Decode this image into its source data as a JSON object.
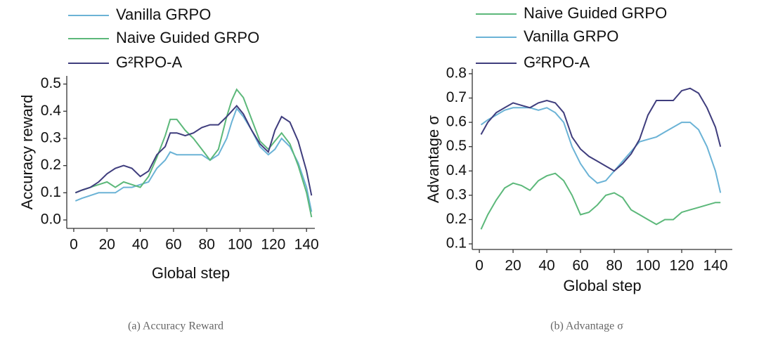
{
  "chart_data": [
    {
      "type": "line",
      "caption": "(a) Accuracy Reward",
      "xlabel": "Global step",
      "ylabel": "Accuracy reward",
      "x": [
        1,
        5,
        10,
        15,
        20,
        25,
        30,
        35,
        40,
        45,
        50,
        55,
        58,
        62,
        67,
        72,
        77,
        82,
        87,
        92,
        95,
        98,
        102,
        107,
        112,
        117,
        121,
        125,
        130,
        135,
        140,
        143
      ],
      "series": [
        {
          "name": "Vanilla GRPO",
          "color": "#6bb3d6",
          "values": [
            0.07,
            0.08,
            0.09,
            0.1,
            0.1,
            0.1,
            0.12,
            0.12,
            0.13,
            0.14,
            0.19,
            0.22,
            0.25,
            0.24,
            0.24,
            0.24,
            0.24,
            0.22,
            0.24,
            0.3,
            0.36,
            0.41,
            0.38,
            0.33,
            0.27,
            0.24,
            0.26,
            0.3,
            0.27,
            0.21,
            0.12,
            0.03
          ]
        },
        {
          "name": "Naive Guided GRPO",
          "color": "#5cb87a",
          "values": [
            0.1,
            0.11,
            0.12,
            0.13,
            0.14,
            0.12,
            0.14,
            0.13,
            0.12,
            0.16,
            0.23,
            0.31,
            0.37,
            0.37,
            0.33,
            0.3,
            0.26,
            0.22,
            0.26,
            0.38,
            0.44,
            0.48,
            0.45,
            0.37,
            0.29,
            0.26,
            0.29,
            0.32,
            0.28,
            0.2,
            0.1,
            0.01
          ]
        },
        {
          "name": "G²RPO-A",
          "color": "#3f3d7d",
          "values": [
            0.1,
            0.11,
            0.12,
            0.14,
            0.17,
            0.19,
            0.2,
            0.19,
            0.16,
            0.18,
            0.24,
            0.27,
            0.32,
            0.32,
            0.31,
            0.32,
            0.34,
            0.35,
            0.35,
            0.38,
            0.4,
            0.42,
            0.39,
            0.33,
            0.28,
            0.25,
            0.33,
            0.38,
            0.36,
            0.29,
            0.18,
            0.09
          ]
        }
      ],
      "xlim": [
        -4.2,
        145
      ],
      "xticks": [
        0,
        20,
        40,
        60,
        80,
        100,
        120,
        140
      ],
      "ylim": [
        -0.031,
        0.53
      ],
      "yticks": [
        {
          "value": 0,
          "label": "0.0"
        },
        0.1,
        0.2,
        0.3,
        0.4,
        0.5
      ]
    },
    {
      "type": "line",
      "caption": "(b) Advantage σ",
      "xlabel": "Global step",
      "ylabel": "Advantage σ",
      "x": [
        1,
        5,
        10,
        15,
        20,
        25,
        30,
        35,
        40,
        45,
        50,
        55,
        60,
        65,
        70,
        75,
        80,
        85,
        90,
        95,
        100,
        105,
        110,
        115,
        120,
        125,
        130,
        135,
        140,
        143
      ],
      "series": [
        {
          "name": "Naive Guided GRPO",
          "color": "#5cb87a",
          "values": [
            0.16,
            0.22,
            0.28,
            0.33,
            0.35,
            0.34,
            0.32,
            0.36,
            0.38,
            0.39,
            0.36,
            0.3,
            0.22,
            0.23,
            0.26,
            0.3,
            0.31,
            0.29,
            0.24,
            0.22,
            0.2,
            0.18,
            0.2,
            0.2,
            0.23,
            0.24,
            0.25,
            0.26,
            0.27,
            0.27
          ]
        },
        {
          "name": "Vanilla GRPO",
          "color": "#6bb3d6",
          "values": [
            0.59,
            0.61,
            0.63,
            0.65,
            0.66,
            0.66,
            0.66,
            0.65,
            0.66,
            0.64,
            0.6,
            0.5,
            0.43,
            0.38,
            0.35,
            0.36,
            0.4,
            0.44,
            0.48,
            0.52,
            0.53,
            0.54,
            0.56,
            0.58,
            0.6,
            0.6,
            0.57,
            0.5,
            0.4,
            0.31
          ]
        },
        {
          "name": "G²RPO-A",
          "color": "#3f3d7d",
          "values": [
            0.55,
            0.6,
            0.64,
            0.66,
            0.68,
            0.67,
            0.66,
            0.68,
            0.69,
            0.68,
            0.64,
            0.54,
            0.49,
            0.46,
            0.44,
            0.42,
            0.4,
            0.43,
            0.47,
            0.53,
            0.63,
            0.69,
            0.69,
            0.69,
            0.73,
            0.74,
            0.72,
            0.66,
            0.58,
            0.5
          ]
        }
      ],
      "xlim": [
        -4.2,
        150
      ],
      "xticks": [
        0,
        20,
        40,
        60,
        80,
        100,
        120,
        140
      ],
      "ylim": [
        0.077,
        0.82
      ],
      "yticks": [
        0.1,
        0.2,
        0.3,
        0.4,
        0.5,
        0.6,
        0.7,
        0.8
      ]
    }
  ]
}
